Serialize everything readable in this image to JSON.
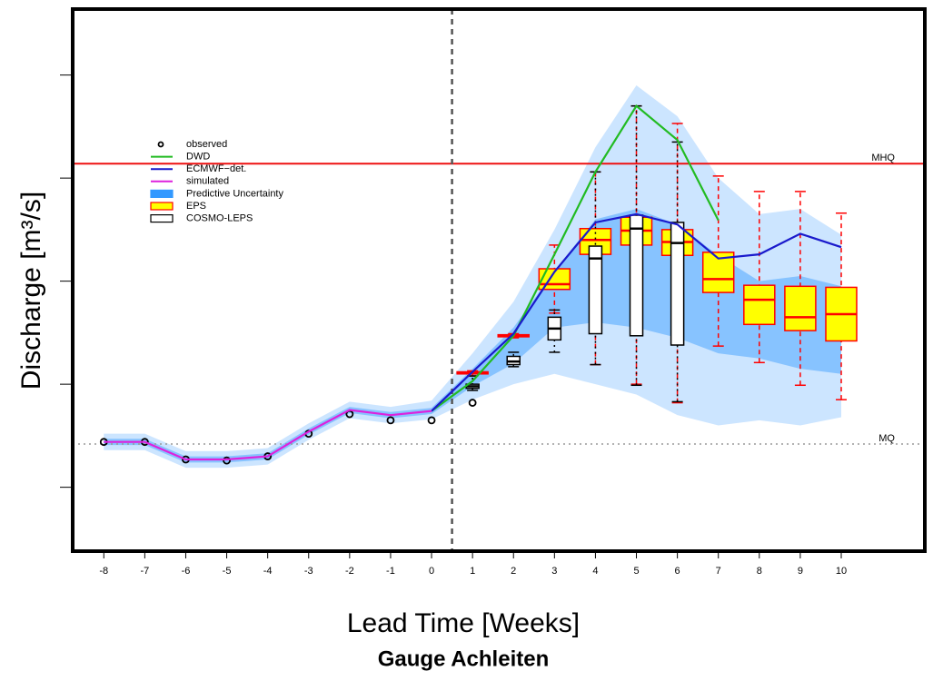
{
  "chart_data": {
    "type": "line",
    "title": "Gauge Achleiten",
    "xlabel": "Lead Time [Weeks]",
    "ylabel": "Discharge [m³/s]",
    "x": [
      -8,
      -7,
      -6,
      -5,
      -4,
      -3,
      -2,
      -1,
      0,
      1,
      2,
      3,
      4,
      5,
      6,
      7,
      8,
      9,
      10
    ],
    "xlim": [
      -8.76,
      12.04
    ],
    "xticks": [
      -8,
      -7,
      -6,
      -5,
      -4,
      -3,
      -2,
      -1,
      0,
      1,
      2,
      3,
      4,
      5,
      6,
      7,
      8,
      9,
      10
    ],
    "ylim": [
      0.38,
      5.64
    ],
    "yticks": [
      1,
      2,
      3,
      4,
      5
    ],
    "series": [
      {
        "name": "observed",
        "color": "#000000",
        "mode": "markers",
        "values": [
          1.44,
          1.44,
          1.27,
          1.26,
          1.3,
          1.52,
          1.71,
          1.65,
          1.65,
          1.82,
          null,
          null,
          null,
          null,
          null,
          null,
          null,
          null,
          null
        ]
      },
      {
        "name": "DWD",
        "color": "#22bb22",
        "mode": "line",
        "values": [
          null,
          null,
          null,
          null,
          null,
          null,
          null,
          null,
          1.74,
          2.03,
          2.47,
          3.26,
          4.06,
          4.7,
          4.37,
          3.59,
          null,
          null,
          null
        ]
      },
      {
        "name": "ECMWF−det.",
        "color": "#1a1acc",
        "mode": "line",
        "values": [
          null,
          null,
          null,
          null,
          null,
          null,
          null,
          null,
          1.74,
          2.12,
          2.49,
          3.09,
          3.57,
          3.65,
          3.55,
          3.22,
          3.26,
          3.46,
          3.33
        ]
      },
      {
        "name": "simulated",
        "color": "#dd22dd",
        "mode": "line",
        "values": [
          1.44,
          1.44,
          1.27,
          1.27,
          1.3,
          1.54,
          1.75,
          1.7,
          1.74,
          null,
          null,
          null,
          null,
          null,
          null,
          null,
          null,
          null,
          null
        ]
      }
    ],
    "uncertainty": {
      "name": "Predictive Uncertainty",
      "color": "#3399ff",
      "bands": [
        {
          "lower": [
            1.36,
            1.36,
            1.19,
            1.19,
            1.22,
            1.46,
            1.67,
            1.62,
            1.66,
            1.85,
            2.0,
            2.1,
            2.0,
            1.9,
            1.7,
            1.6,
            1.65,
            1.6,
            1.68
          ],
          "upper": [
            1.52,
            1.52,
            1.35,
            1.35,
            1.38,
            1.62,
            1.83,
            1.78,
            1.84,
            2.3,
            2.8,
            3.5,
            4.3,
            4.9,
            4.6,
            4.0,
            3.65,
            3.7,
            3.45
          ]
        },
        {
          "lower": [
            1.41,
            1.41,
            1.24,
            1.24,
            1.27,
            1.51,
            1.72,
            1.67,
            1.71,
            1.98,
            2.2,
            2.55,
            2.6,
            2.55,
            2.45,
            2.3,
            2.25,
            2.15,
            2.1
          ],
          "upper": [
            1.47,
            1.47,
            1.3,
            1.3,
            1.33,
            1.57,
            1.78,
            1.73,
            1.77,
            2.15,
            2.55,
            3.1,
            3.6,
            3.7,
            3.55,
            3.25,
            3.0,
            3.05,
            2.95
          ]
        }
      ]
    },
    "eps": {
      "name": "EPS",
      "color": "#ffff00",
      "edge": "#ff0000",
      "x": [
        1,
        2,
        3,
        4,
        5,
        6,
        7,
        8,
        9,
        10
      ],
      "low": [
        2.08,
        2.45,
        2.69,
        2.19,
        2.0,
        1.82,
        2.37,
        2.21,
        1.99,
        1.85
      ],
      "q1": [
        2.1,
        2.46,
        2.92,
        3.26,
        3.35,
        3.25,
        2.89,
        2.58,
        2.52,
        2.42
      ],
      "median": [
        2.11,
        2.47,
        2.97,
        3.4,
        3.49,
        3.38,
        3.02,
        2.82,
        2.65,
        2.68
      ],
      "q3": [
        2.12,
        2.48,
        3.12,
        3.51,
        3.62,
        3.5,
        3.28,
        2.96,
        2.95,
        2.94
      ],
      "high": [
        2.13,
        2.49,
        3.35,
        4.06,
        4.7,
        4.53,
        4.02,
        3.87,
        3.87,
        3.66
      ]
    },
    "cosmo": {
      "name": "COSMO-LEPS",
      "color": "#ffffff",
      "edge": "#000000",
      "x": [
        1,
        2,
        3,
        4,
        5,
        6
      ],
      "low": [
        1.94,
        2.17,
        2.31,
        2.19,
        1.99,
        1.83
      ],
      "q1": [
        1.96,
        2.19,
        2.43,
        2.49,
        2.47,
        2.38
      ],
      "median": [
        1.98,
        2.22,
        2.54,
        3.22,
        3.51,
        3.37
      ],
      "q3": [
        2.0,
        2.27,
        2.65,
        3.34,
        3.64,
        3.57
      ],
      "high": [
        2.08,
        2.31,
        2.72,
        4.06,
        4.7,
        4.35
      ]
    },
    "hlines": [
      {
        "label": "MHQ",
        "value": 4.14,
        "color": "#ee1111",
        "style": "solid"
      },
      {
        "label": "MQ",
        "value": 1.42,
        "color": "#999999",
        "style": "dotted"
      }
    ],
    "vline": 0.5
  }
}
